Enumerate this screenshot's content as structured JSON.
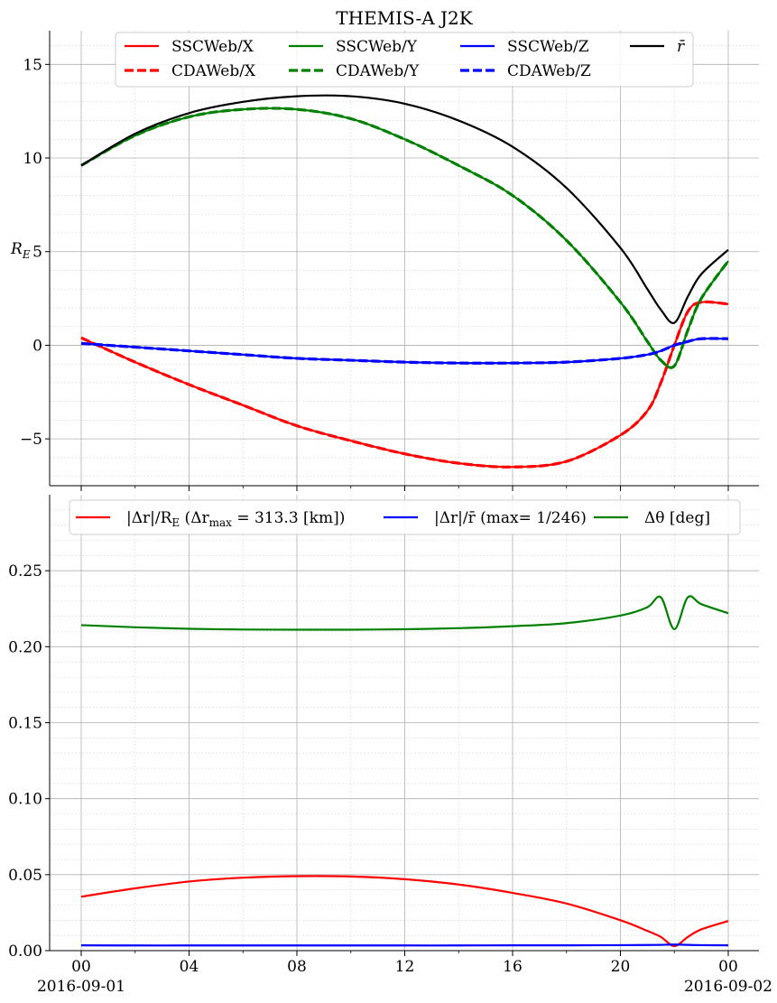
{
  "chart_data": [
    {
      "type": "line",
      "title": "THEMIS-A J2K",
      "ylabel": "R_E",
      "xlim_hours": [
        -2,
        46.5
      ],
      "ylim": [
        -7.5,
        16.8
      ],
      "y_ticks": [
        -5,
        0,
        5,
        10,
        15
      ],
      "y_tick_labels": [
        "−5",
        "0",
        "5",
        "10",
        "15"
      ],
      "grid": true,
      "legend_placement": "top-center",
      "legend": [
        {
          "key": "ssc_x",
          "label": "SSCWeb/X",
          "color": "#ff0000",
          "dash": false
        },
        {
          "key": "cda_x",
          "label": "CDAWeb/X",
          "color": "#ff0000",
          "dash": true
        },
        {
          "key": "ssc_y",
          "label": "SSCWeb/Y",
          "color": "#008000",
          "dash": false
        },
        {
          "key": "cda_y",
          "label": "CDAWeb/Y",
          "color": "#008000",
          "dash": true
        },
        {
          "key": "ssc_z",
          "label": "SSCWeb/Z",
          "color": "#0000ff",
          "dash": false
        },
        {
          "key": "cda_z",
          "label": "CDAWeb/Z",
          "color": "#0000ff",
          "dash": true
        },
        {
          "key": "rbar",
          "label": "r̄",
          "color": "#000000",
          "dash": false
        }
      ],
      "x_hours": [
        0,
        2,
        4,
        6,
        8,
        10,
        12,
        14,
        16,
        18,
        20,
        21,
        21.5,
        22,
        22.5,
        23,
        24
      ],
      "series": [
        {
          "name": "SSCWeb/X",
          "color": "#ff0000",
          "dash": false,
          "values": [
            0.4,
            -0.9,
            -2.1,
            -3.2,
            -4.3,
            -5.1,
            -5.8,
            -6.3,
            -6.5,
            -6.2,
            -4.8,
            -3.5,
            -2.0,
            0.0,
            1.8,
            2.3,
            2.2
          ]
        },
        {
          "name": "CDAWeb/X",
          "color": "#ff0000",
          "dash": true,
          "values": [
            0.4,
            -0.9,
            -2.1,
            -3.2,
            -4.3,
            -5.1,
            -5.8,
            -6.3,
            -6.5,
            -6.2,
            -4.8,
            -3.5,
            -2.0,
            0.0,
            1.8,
            2.3,
            2.2
          ]
        },
        {
          "name": "SSCWeb/Y",
          "color": "#008000",
          "dash": false,
          "values": [
            9.6,
            11.2,
            12.2,
            12.6,
            12.6,
            12.1,
            11.0,
            9.6,
            8.0,
            5.6,
            2.3,
            0.2,
            -0.8,
            -1.1,
            0.8,
            2.5,
            4.5
          ]
        },
        {
          "name": "CDAWeb/Y",
          "color": "#008000",
          "dash": true,
          "values": [
            9.6,
            11.2,
            12.2,
            12.6,
            12.6,
            12.1,
            11.0,
            9.6,
            8.0,
            5.6,
            2.3,
            0.2,
            -0.8,
            -1.1,
            0.8,
            2.5,
            4.5
          ]
        },
        {
          "name": "SSCWeb/Z",
          "color": "#0000ff",
          "dash": false,
          "values": [
            0.1,
            -0.1,
            -0.3,
            -0.5,
            -0.7,
            -0.8,
            -0.9,
            -0.95,
            -0.95,
            -0.9,
            -0.7,
            -0.5,
            -0.3,
            0.0,
            0.2,
            0.35,
            0.35
          ]
        },
        {
          "name": "CDAWeb/Z",
          "color": "#0000ff",
          "dash": true,
          "values": [
            0.1,
            -0.1,
            -0.3,
            -0.5,
            -0.7,
            -0.8,
            -0.9,
            -0.95,
            -0.95,
            -0.9,
            -0.7,
            -0.5,
            -0.3,
            0.0,
            0.2,
            0.35,
            0.35
          ]
        },
        {
          "name": "r̄",
          "color": "#000000",
          "dash": false,
          "values": [
            9.6,
            11.3,
            12.4,
            13.0,
            13.3,
            13.3,
            12.9,
            12.0,
            10.6,
            8.4,
            5.2,
            3.0,
            1.9,
            1.2,
            2.6,
            3.8,
            5.1
          ]
        }
      ]
    },
    {
      "type": "line",
      "ylim": [
        0,
        0.3
      ],
      "y_ticks": [
        0.0,
        0.05,
        0.1,
        0.15,
        0.2,
        0.25
      ],
      "y_tick_labels": [
        "0.00",
        "0.05",
        "0.10",
        "0.15",
        "0.20",
        "0.25"
      ],
      "grid": true,
      "legend_placement": "top-center",
      "legend": [
        {
          "key": "dr_re",
          "label": "|Δr|/R",
          "sub": "E",
          "rest": " (Δr",
          "sub2": "max",
          "rest2": " = 313.3 [km])",
          "color": "#ff0000"
        },
        {
          "key": "dr_rbar",
          "label": "|Δr|/r̄  (max= 1/246)",
          "color": "#0000ff"
        },
        {
          "key": "dtheta",
          "label": "Δθ [deg]",
          "color": "#008000"
        }
      ],
      "x_hours": [
        0,
        2,
        4,
        6,
        8,
        10,
        12,
        14,
        16,
        18,
        20,
        21,
        21.5,
        22,
        22.5,
        23,
        24
      ],
      "x_tick_hours": [
        0,
        4,
        8,
        12,
        16,
        20,
        24
      ],
      "x_tick_labels": [
        "00",
        "04",
        "08",
        "12",
        "16",
        "20",
        "00"
      ],
      "x_date_labels": [
        {
          "hour": 0,
          "label": "2016-09-01"
        },
        {
          "hour": 24,
          "label": "2016-09-02"
        }
      ],
      "series": [
        {
          "name": "|Δr|/R_E",
          "color": "#ff0000",
          "values": [
            0.0355,
            0.041,
            0.0455,
            0.048,
            0.049,
            0.0488,
            0.047,
            0.0435,
            0.038,
            0.031,
            0.02,
            0.013,
            0.009,
            0.003,
            0.009,
            0.014,
            0.0195
          ]
        },
        {
          "name": "|Δr|/r̄",
          "color": "#0000ff",
          "values": [
            0.0035,
            0.0034,
            0.0034,
            0.0034,
            0.0034,
            0.0034,
            0.0034,
            0.0034,
            0.0035,
            0.0035,
            0.0036,
            0.0037,
            0.0038,
            0.004,
            0.0038,
            0.0036,
            0.0035
          ]
        },
        {
          "name": "Δθ",
          "color": "#008000",
          "values": [
            0.2142,
            0.2128,
            0.2118,
            0.2113,
            0.2112,
            0.2112,
            0.2115,
            0.2122,
            0.2135,
            0.2155,
            0.2205,
            0.226,
            0.2325,
            0.2115,
            0.2325,
            0.228,
            0.222
          ]
        }
      ]
    }
  ]
}
